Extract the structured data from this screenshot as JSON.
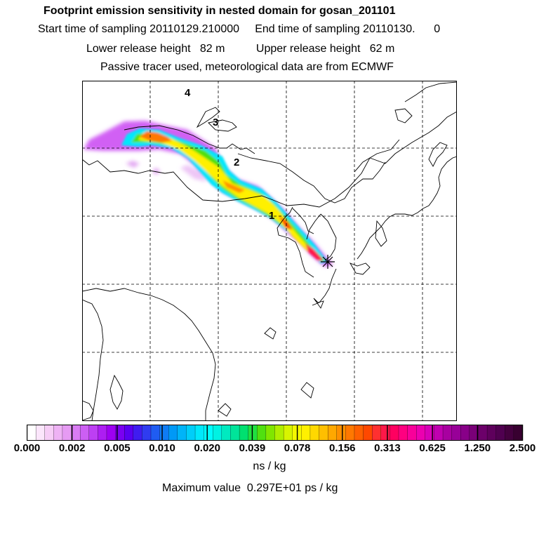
{
  "header": {
    "title": "Footprint emission sensitivity in nested domain for gosan_201101",
    "line2": "Start time of sampling 20110129.210000     End time of sampling 20110130.      0",
    "line3": "Lower release height   82 m          Upper release height   62 m",
    "line4": "Passive tracer used, meteorological data are from ECMWF"
  },
  "map": {
    "labels": [
      "4",
      "3",
      "2",
      "1"
    ],
    "receptor_marker": "asterisk",
    "grid": true
  },
  "colorbar": {
    "ticks": [
      "0.000",
      "0.002",
      "0.005",
      "0.010",
      "0.020",
      "0.039",
      "0.078",
      "0.156",
      "0.313",
      "0.625",
      "1.250",
      "2.500"
    ],
    "unit": "ns / kg",
    "colors": [
      "#ffffff",
      "#fbe6fb",
      "#f6cdf6",
      "#eeb2f4",
      "#e69bf3",
      "#d97cf3",
      "#cc5ff3",
      "#bd3ff3",
      "#ad1ef2",
      "#9e00f2",
      "#7a00f1",
      "#5a00f1",
      "#3f1cf0",
      "#2f3cf0",
      "#1f5cf2",
      "#0f7cf4",
      "#0099f6",
      "#00b4f8",
      "#00cef9",
      "#00e8fb",
      "#00fcff",
      "#00f2e3",
      "#00eac0",
      "#00e49a",
      "#00e070",
      "#20e040",
      "#50e010",
      "#80e600",
      "#b0ee00",
      "#d8f400",
      "#f4f800",
      "#fff000",
      "#ffd800",
      "#ffbf00",
      "#ffa800",
      "#ff9000",
      "#ff7800",
      "#ff6000",
      "#ff4800",
      "#ff3030",
      "#ff1848",
      "#ff0060",
      "#ff0080",
      "#f8009a",
      "#ec00b0",
      "#d800b8",
      "#c000b0",
      "#a800a0",
      "#980098",
      "#880088",
      "#7a0078",
      "#6c006a",
      "#5e005c",
      "#500050",
      "#44003e",
      "#380030"
    ]
  },
  "footer": {
    "max_value": "Maximum value  0.297E+01 ps / kg"
  }
}
